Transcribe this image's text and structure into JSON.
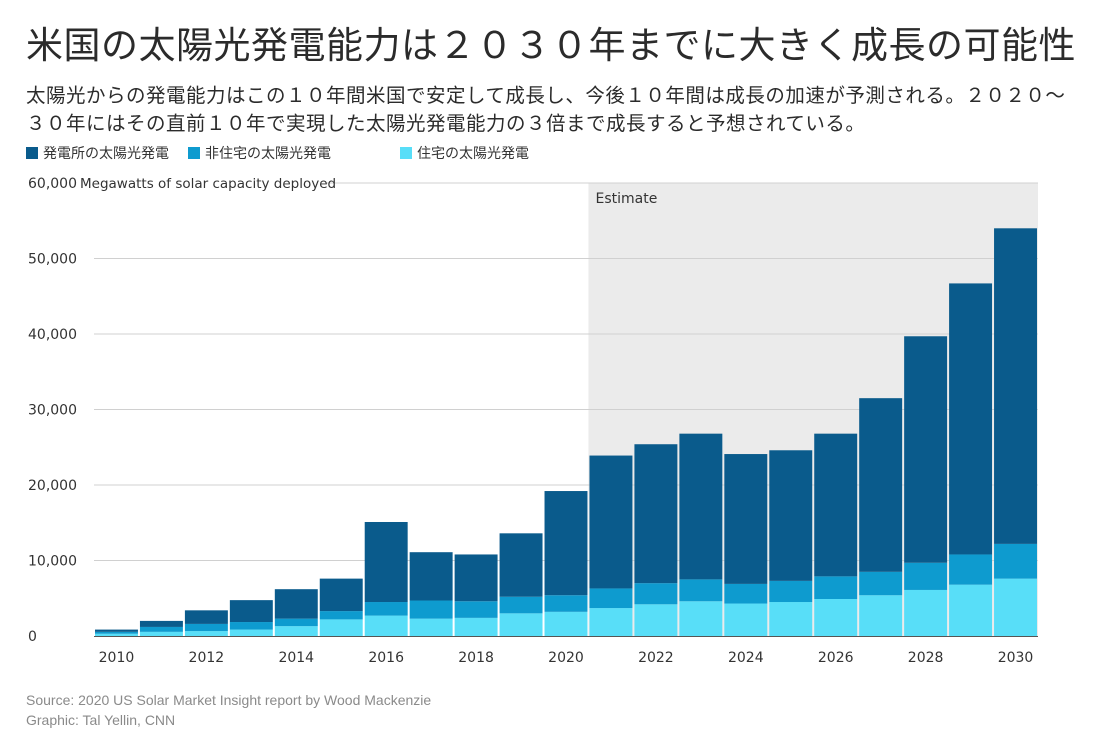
{
  "header": {
    "title": "米国の太陽光発電能力は２０３０年までに大きく成長の可能性",
    "subtitle": "太陽光からの発電能力はこの１０年間米国で安定して成長し、今後１０年間は成長の加速が予測される。２０２０～３０年にはその直前１０年で実現した太陽光発電能力の３倍まで成長すると予想されている。"
  },
  "colors": {
    "utility": "#0a5b8c",
    "non_residential": "#0e9bcf",
    "residential": "#58def8",
    "estimate_bg": "#ebebeb",
    "gridline": "#d0d0d0"
  },
  "footer": {
    "source": "Source: 2020 US Solar Market Insight report by Wood Mackenzie",
    "graphic": "Graphic: Tal Yellin, CNN"
  },
  "chart_data": {
    "type": "bar",
    "stacked": true,
    "ylabel": "Megawatts of solar capacity deployed",
    "ylim": [
      0,
      60000
    ],
    "yticks": [
      0,
      10000,
      20000,
      30000,
      40000,
      50000,
      60000
    ],
    "ytick_labels": [
      "0",
      "10,000",
      "20,000",
      "30,000",
      "40,000",
      "50,000",
      "60,000"
    ],
    "xtick_labels": [
      "2010",
      "2012",
      "2014",
      "2016",
      "2018",
      "2020",
      "2022",
      "2024",
      "2026",
      "2028",
      "2030"
    ],
    "categories": [
      "2010",
      "2011",
      "2012",
      "2013",
      "2014",
      "2015",
      "2016",
      "2017",
      "2018",
      "2019",
      "2020",
      "2021",
      "2022",
      "2023",
      "2024",
      "2025",
      "2026",
      "2027",
      "2028",
      "2029",
      "2030"
    ],
    "estimate_label": "Estimate",
    "estimate_start": "2021",
    "legend_placement": "top-left",
    "grid": true,
    "series": [
      {
        "name": "住宅の太陽光発電",
        "color_key": "residential",
        "values": [
          300,
          550,
          650,
          850,
          1300,
          2200,
          2700,
          2300,
          2400,
          3000,
          3200,
          3700,
          4200,
          4600,
          4300,
          4500,
          4900,
          5400,
          6100,
          6800,
          7600
        ]
      },
      {
        "name": "非住宅の太陽光発電",
        "color_key": "non_residential",
        "values": [
          250,
          650,
          950,
          1000,
          1000,
          1100,
          1800,
          2400,
          2200,
          2200,
          2200,
          2600,
          2800,
          2900,
          2600,
          2800,
          3000,
          3100,
          3600,
          4000,
          4600
        ]
      },
      {
        "name": "発電所の太陽光発電",
        "color_key": "utility",
        "values": [
          300,
          800,
          1800,
          2900,
          3900,
          4300,
          10600,
          6400,
          6200,
          8400,
          13800,
          17600,
          18400,
          19300,
          17200,
          17300,
          18900,
          23000,
          30000,
          35900,
          41800
        ]
      }
    ]
  }
}
